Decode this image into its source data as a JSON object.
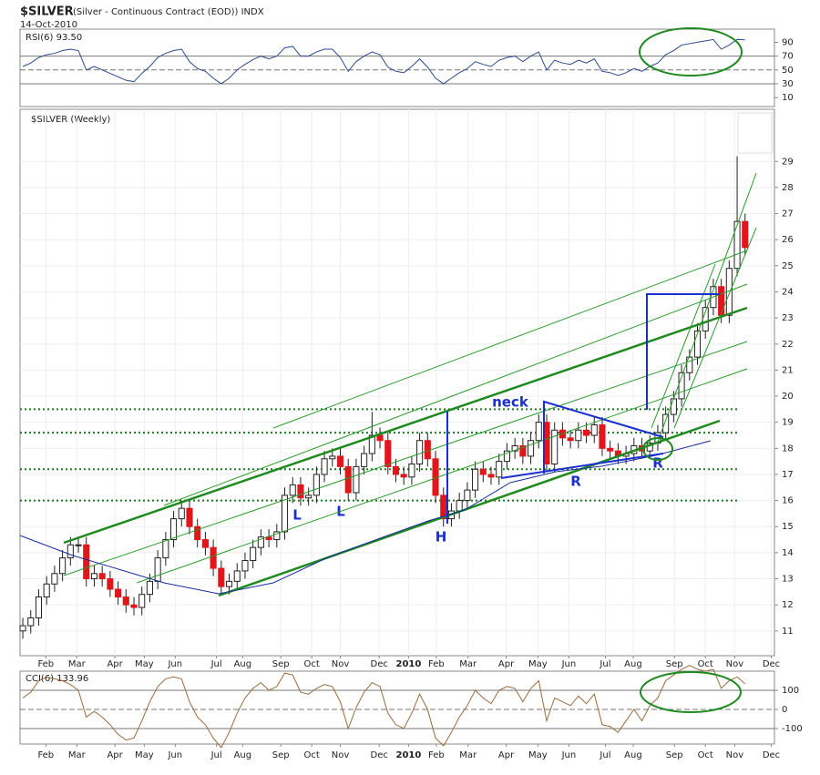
{
  "chart_data": [
    {
      "type": "line",
      "title": "RSI(6) 93.50",
      "color": "#2d4b8e",
      "xlim": [
        -0.35,
        94.7
      ],
      "ylim": [
        -3,
        109
      ],
      "yticks": [
        10,
        30,
        50,
        70,
        90
      ],
      "hlines": [
        30,
        50,
        70
      ],
      "values": [
        55,
        60,
        68,
        72,
        74,
        78,
        80,
        78,
        50,
        55,
        50,
        45,
        40,
        35,
        33,
        45,
        55,
        68,
        74,
        78,
        80,
        62,
        52,
        48,
        38,
        30,
        38,
        50,
        58,
        65,
        70,
        66,
        70,
        82,
        84,
        70,
        70,
        76,
        80,
        80,
        68,
        48,
        62,
        70,
        76,
        72,
        54,
        48,
        46,
        55,
        66,
        54,
        38,
        30,
        38,
        46,
        52,
        62,
        58,
        55,
        64,
        68,
        70,
        62,
        70,
        76,
        50,
        64,
        60,
        58,
        64,
        60,
        66,
        48,
        46,
        42,
        46,
        52,
        48,
        55,
        60,
        72,
        78,
        86,
        88,
        90,
        92,
        94,
        80,
        86,
        94,
        93.5
      ]
    },
    {
      "type": "candlestick",
      "title": "$SILVER",
      "subtitle": "(Silver - Continuous Contract (EOD)) INDX",
      "date": "14-Oct-2010",
      "label": "$SILVER (Weekly)",
      "up_color": "#ffffff",
      "down_color": "#e0161b",
      "xlim": [
        -0.35,
        94.7
      ],
      "ylim": [
        10.05,
        31
      ],
      "yticks": [
        11,
        12,
        13,
        14,
        15,
        16,
        17,
        18,
        19,
        20,
        21,
        22,
        23,
        24,
        25,
        26,
        27,
        28,
        29
      ],
      "xticks": [
        {
          "value": 2.9,
          "label": "Feb"
        },
        {
          "value": 6.8,
          "label": "Mar"
        },
        {
          "value": 11.6,
          "label": "Apr"
        },
        {
          "value": 15.3,
          "label": "May"
        },
        {
          "value": 19.2,
          "label": "Jun"
        },
        {
          "value": 24.4,
          "label": "Jul"
        },
        {
          "value": 27.7,
          "label": "Aug"
        },
        {
          "value": 32.5,
          "label": "Sep"
        },
        {
          "value": 36.4,
          "label": "Oct"
        },
        {
          "value": 40,
          "label": "Nov"
        },
        {
          "value": 44.9,
          "label": "Dec"
        },
        {
          "value": 48.6,
          "label": "2010"
        },
        {
          "value": 52.1,
          "label": "Feb"
        },
        {
          "value": 56.1,
          "label": "Mar"
        },
        {
          "value": 60.9,
          "label": "Apr"
        },
        {
          "value": 64.9,
          "label": "May"
        },
        {
          "value": 68.8,
          "label": "Jun"
        },
        {
          "value": 73.4,
          "label": "Jul"
        },
        {
          "value": 76.9,
          "label": "Aug"
        },
        {
          "value": 82.1,
          "label": "Sep"
        },
        {
          "value": 86,
          "label": "Oct"
        },
        {
          "value": 89.7,
          "label": "Nov"
        },
        {
          "value": 94.3,
          "label": "Dec"
        }
      ],
      "levels": [
        19.5,
        18.6,
        17.2,
        16.0
      ],
      "annotations": [
        "neck",
        "L",
        "L",
        "H",
        "R",
        "R"
      ],
      "open": [
        11.0,
        11.2,
        11.5,
        12.3,
        12.8,
        13.2,
        13.8,
        14.3,
        14.3,
        13.0,
        13.2,
        13.0,
        12.6,
        12.3,
        12.0,
        11.9,
        12.4,
        12.9,
        13.8,
        14.5,
        15.3,
        15.7,
        15.0,
        14.5,
        14.2,
        13.4,
        12.7,
        12.9,
        13.3,
        13.7,
        14.2,
        14.6,
        14.5,
        14.8,
        16.2,
        16.6,
        16.1,
        16.2,
        17.0,
        17.6,
        17.7,
        17.3,
        16.3,
        17.3,
        17.8,
        18.5,
        18.3,
        17.3,
        17.0,
        16.9,
        17.4,
        18.3,
        17.6,
        16.2,
        15.3,
        15.6,
        16.0,
        16.4,
        17.2,
        17.0,
        16.9,
        17.5,
        17.9,
        18.1,
        17.7,
        18.3,
        19.0,
        17.4,
        18.7,
        18.4,
        18.3,
        18.7,
        18.5,
        18.9,
        18.0,
        17.9,
        17.7,
        17.8,
        18.1,
        17.9,
        18.2,
        18.6,
        19.3,
        19.9,
        20.9,
        21.5,
        22.5,
        23.4,
        24.2,
        23.1,
        24.9,
        26.7
      ],
      "high": [
        11.5,
        11.8,
        12.6,
        13.1,
        13.5,
        14.1,
        14.6,
        14.6,
        14.6,
        13.5,
        13.5,
        13.3,
        12.9,
        12.6,
        12.3,
        12.7,
        13.2,
        14.1,
        14.8,
        15.6,
        16.0,
        16.0,
        15.3,
        14.8,
        14.5,
        13.7,
        13.2,
        13.6,
        14.0,
        14.5,
        14.9,
        14.9,
        15.1,
        16.5,
        16.9,
        16.9,
        16.5,
        17.3,
        17.9,
        18.0,
        18.0,
        17.6,
        17.6,
        18.1,
        19.4,
        18.8,
        18.6,
        17.6,
        17.3,
        17.7,
        18.6,
        18.6,
        17.9,
        16.5,
        15.9,
        16.3,
        16.7,
        17.5,
        17.5,
        17.3,
        17.8,
        18.2,
        18.4,
        18.4,
        18.6,
        19.3,
        19.3,
        19.0,
        19.0,
        18.7,
        19.0,
        19.0,
        19.2,
        19.2,
        18.3,
        18.2,
        18.1,
        18.4,
        18.4,
        18.5,
        18.9,
        19.6,
        20.2,
        21.2,
        21.8,
        22.8,
        23.7,
        24.5,
        24.5,
        25.2,
        29.2,
        27.0
      ],
      "low": [
        10.7,
        10.9,
        11.2,
        12.0,
        12.5,
        12.9,
        13.5,
        14.0,
        12.7,
        12.7,
        12.7,
        12.3,
        12.0,
        11.7,
        11.6,
        11.6,
        12.1,
        12.6,
        13.5,
        14.2,
        15.0,
        14.7,
        14.2,
        13.9,
        13.1,
        12.4,
        12.4,
        12.6,
        13.0,
        13.4,
        13.9,
        14.2,
        14.2,
        14.5,
        15.9,
        15.8,
        15.8,
        15.9,
        16.7,
        17.3,
        17.0,
        16.0,
        16.0,
        17.0,
        17.5,
        18.0,
        17.0,
        16.7,
        16.6,
        16.6,
        17.1,
        17.3,
        15.9,
        15.0,
        15.0,
        15.3,
        15.7,
        16.1,
        16.7,
        16.6,
        16.6,
        17.2,
        17.6,
        17.4,
        17.4,
        18.0,
        17.1,
        17.1,
        18.1,
        18.0,
        18.0,
        18.2,
        18.2,
        17.7,
        17.6,
        17.4,
        17.4,
        17.5,
        17.6,
        17.6,
        17.9,
        18.3,
        19.0,
        19.6,
        20.6,
        21.2,
        22.2,
        23.1,
        22.8,
        22.8,
        24.6,
        25.4
      ],
      "close": [
        11.2,
        11.5,
        12.3,
        12.8,
        13.2,
        13.8,
        14.3,
        14.3,
        13.0,
        13.2,
        13.0,
        12.6,
        12.3,
        12.0,
        11.9,
        12.4,
        12.9,
        13.8,
        14.5,
        15.3,
        15.7,
        15.0,
        14.5,
        14.2,
        13.4,
        12.7,
        12.9,
        13.3,
        13.7,
        14.2,
        14.6,
        14.5,
        14.8,
        16.2,
        16.6,
        16.1,
        16.2,
        17.0,
        17.6,
        17.7,
        17.3,
        16.3,
        17.3,
        17.8,
        18.5,
        18.3,
        17.3,
        17.0,
        16.9,
        17.4,
        18.3,
        17.6,
        16.2,
        15.3,
        15.6,
        16.0,
        16.4,
        17.2,
        17.0,
        16.9,
        17.5,
        17.9,
        18.1,
        17.7,
        18.3,
        19.0,
        17.4,
        18.7,
        18.4,
        18.3,
        18.7,
        18.5,
        18.9,
        18.0,
        17.9,
        17.7,
        17.8,
        18.1,
        17.9,
        18.2,
        18.6,
        19.3,
        19.9,
        20.9,
        21.5,
        22.5,
        23.4,
        24.2,
        23.1,
        24.9,
        26.7,
        25.7
      ]
    },
    {
      "type": "line",
      "title": "CCI(6) 133.96",
      "color": "#9a6a3c",
      "xlim": [
        -0.35,
        94.7
      ],
      "ylim": [
        -181,
        200
      ],
      "yticks": [
        -100,
        0,
        100
      ],
      "hlines": [
        -100,
        0,
        100
      ],
      "xticks": [
        {
          "value": 2.9,
          "label": "Feb"
        },
        {
          "value": 6.8,
          "label": "Mar"
        },
        {
          "value": 11.6,
          "label": "Apr"
        },
        {
          "value": 15.3,
          "label": "May"
        },
        {
          "value": 19.2,
          "label": "Jun"
        },
        {
          "value": 24.4,
          "label": "Jul"
        },
        {
          "value": 27.7,
          "label": "Aug"
        },
        {
          "value": 32.5,
          "label": "Sep"
        },
        {
          "value": 36.4,
          "label": "Oct"
        },
        {
          "value": 40,
          "label": "Nov"
        },
        {
          "value": 44.9,
          "label": "Dec"
        },
        {
          "value": 48.6,
          "label": "2010"
        },
        {
          "value": 52.1,
          "label": "Feb"
        },
        {
          "value": 56.1,
          "label": "Mar"
        },
        {
          "value": 60.9,
          "label": "Apr"
        },
        {
          "value": 64.9,
          "label": "May"
        },
        {
          "value": 68.8,
          "label": "Jun"
        },
        {
          "value": 73.4,
          "label": "Jul"
        },
        {
          "value": 76.9,
          "label": "Aug"
        },
        {
          "value": 82.1,
          "label": "Sep"
        },
        {
          "value": 86,
          "label": "Oct"
        },
        {
          "value": 89.7,
          "label": "Nov"
        },
        {
          "value": 94.3,
          "label": "Dec"
        }
      ],
      "values": [
        60,
        90,
        150,
        170,
        160,
        150,
        130,
        100,
        -40,
        -10,
        -40,
        -80,
        -130,
        -160,
        -150,
        -60,
        40,
        120,
        160,
        170,
        160,
        40,
        -40,
        -80,
        -150,
        -200,
        -120,
        -20,
        60,
        110,
        140,
        100,
        120,
        190,
        180,
        90,
        80,
        110,
        130,
        120,
        40,
        -100,
        10,
        90,
        140,
        120,
        -20,
        -80,
        -100,
        -20,
        80,
        0,
        -150,
        -190,
        -120,
        -40,
        20,
        100,
        60,
        30,
        100,
        120,
        110,
        40,
        110,
        150,
        -60,
        60,
        40,
        20,
        70,
        30,
        80,
        -80,
        -90,
        -120,
        -60,
        0,
        -60,
        20,
        60,
        150,
        180,
        210,
        230,
        210,
        200,
        210,
        110,
        150,
        170,
        133.96
      ]
    }
  ]
}
